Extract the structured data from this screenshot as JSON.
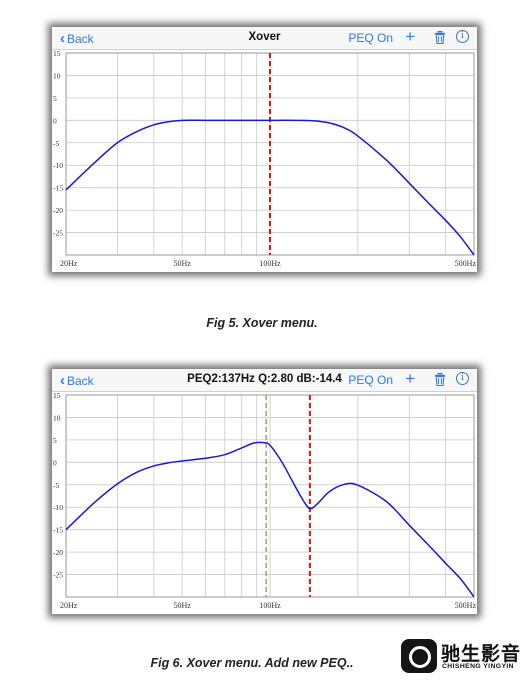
{
  "colors": {
    "accent": "#2a7ae2",
    "curve": "#1a1acc",
    "marker_red": "#e01414",
    "marker_olive": "#8a8a4a",
    "grid": "#c8c8c8"
  },
  "figures": [
    {
      "nav": {
        "back_label": "Back",
        "title": "Xover",
        "peq_label": "PEQ On",
        "add_icon": "plus-icon",
        "delete_icon": "trash-icon",
        "info_icon": "info-icon"
      },
      "caption": "Fig 5. Xover menu."
    },
    {
      "nav": {
        "back_label": "Back",
        "title": "PEQ2:137Hz Q:2.80 dB:-14.4",
        "peq_label": "PEQ On",
        "add_icon": "plus-icon",
        "delete_icon": "trash-icon",
        "info_icon": "info-icon"
      },
      "caption": "Fig 6. Xover menu. Add new PEQ.."
    }
  ],
  "watermark": {
    "name": "驰生影音",
    "subtitle": "CHISHENG YINGYIN"
  },
  "chart_data": [
    {
      "type": "line",
      "xscale": "log",
      "xlim": [
        20,
        500
      ],
      "ylim": [
        -30,
        15
      ],
      "xtick_labels": [
        {
          "value": 20,
          "label": "20Hz"
        },
        {
          "value": 50,
          "label": "50Hz"
        },
        {
          "value": 100,
          "label": "100Hz"
        },
        {
          "value": 500,
          "label": "500Hz"
        }
      ],
      "yticks": [
        15,
        10,
        5,
        0,
        -5,
        -10,
        -15,
        -20,
        -25
      ],
      "grid": true,
      "markers": [
        {
          "x": 100,
          "style": "dashed",
          "color": "red"
        }
      ],
      "series": [
        {
          "x": [
            20,
            25,
            30,
            35,
            40,
            45,
            50,
            60,
            70,
            80,
            100,
            120,
            140,
            160,
            180,
            200,
            250,
            300,
            350,
            400,
            450,
            500
          ],
          "values": [
            -15.5,
            -9.5,
            -5.0,
            -2.5,
            -1.0,
            -0.3,
            0.0,
            0.0,
            0.0,
            0.0,
            0.0,
            0.0,
            -0.1,
            -0.6,
            -1.7,
            -3.5,
            -8.8,
            -14.0,
            -18.5,
            -22.3,
            -26.0,
            -30.0
          ]
        }
      ]
    },
    {
      "type": "line",
      "xscale": "log",
      "xlim": [
        20,
        500
      ],
      "ylim": [
        -30,
        15
      ],
      "xtick_labels": [
        {
          "value": 20,
          "label": "20Hz"
        },
        {
          "value": 50,
          "label": "50Hz"
        },
        {
          "value": 100,
          "label": "100Hz"
        },
        {
          "value": 500,
          "label": "500Hz"
        }
      ],
      "yticks": [
        15,
        10,
        5,
        0,
        -5,
        -10,
        -15,
        -20,
        -25
      ],
      "grid": true,
      "markers": [
        {
          "x": 97,
          "style": "dashed",
          "color": "olive"
        },
        {
          "x": 137,
          "style": "dashed",
          "color": "red"
        }
      ],
      "series": [
        {
          "x": [
            20,
            25,
            30,
            35,
            40,
            45,
            50,
            60,
            70,
            80,
            88,
            95,
            100,
            110,
            120,
            130,
            137,
            145,
            160,
            180,
            200,
            250,
            300,
            350,
            400,
            450,
            500
          ],
          "values": [
            -15.0,
            -9.0,
            -4.8,
            -2.2,
            -0.8,
            -0.1,
            0.3,
            0.9,
            1.7,
            3.2,
            4.3,
            4.4,
            3.8,
            0.0,
            -4.5,
            -8.5,
            -10.3,
            -9.3,
            -6.5,
            -4.9,
            -5.1,
            -8.7,
            -14.0,
            -18.5,
            -22.5,
            -26.0,
            -30.0
          ]
        }
      ]
    }
  ]
}
